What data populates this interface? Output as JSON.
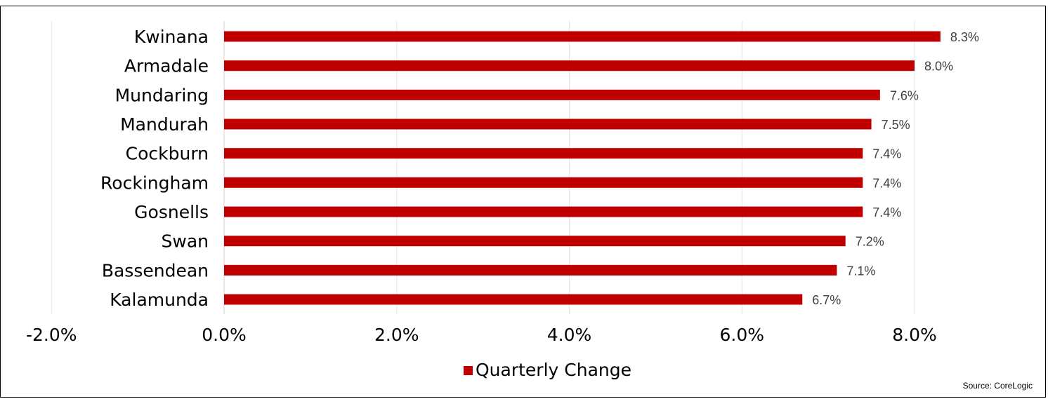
{
  "chart_data": {
    "type": "bar",
    "orientation": "horizontal",
    "title": "",
    "categories": [
      "Kwinana",
      "Armadale",
      "Mundaring",
      "Mandurah",
      "Cockburn",
      "Rockingham",
      "Gosnells",
      "Swan",
      "Bassendean",
      "Kalamunda"
    ],
    "series": [
      {
        "name": "Quarterly Change",
        "values": [
          8.3,
          8.0,
          7.6,
          7.5,
          7.4,
          7.4,
          7.4,
          7.2,
          7.1,
          6.7
        ],
        "labels": [
          "8.3%",
          "8.0%",
          "7.6%",
          "7.5%",
          "7.4%",
          "7.4%",
          "7.4%",
          "7.2%",
          "7.1%",
          "6.7%"
        ],
        "color": "#C00000"
      }
    ],
    "xlim": [
      -2.0,
      8.0
    ],
    "x_ticks": [
      -2.0,
      0.0,
      2.0,
      4.0,
      6.0,
      8.0
    ],
    "x_tick_labels": [
      "-2.0%",
      "0.0%",
      "2.0%",
      "4.0%",
      "6.0%",
      "8.0%"
    ],
    "grid": "vertical",
    "gridline_color": "#E6E6E6",
    "legend_position": "bottom",
    "source": "Source: CoreLogic"
  }
}
